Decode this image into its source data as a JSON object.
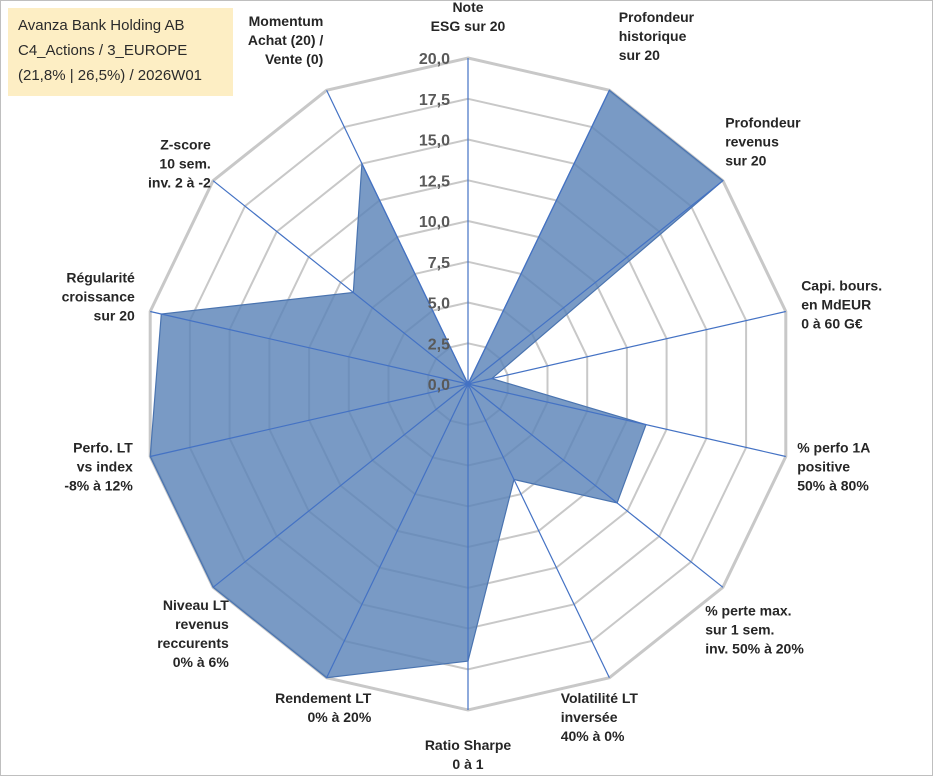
{
  "header": {
    "line1": "Avanza Bank Holding AB",
    "line2": "C4_Actions / 3_EUROPE",
    "line3": "(21,8% | 26,5%) / 2026W01"
  },
  "chart_data": {
    "type": "radar",
    "rmax": 20,
    "ticks": [
      "0,0",
      "2,5",
      "5,0",
      "7,5",
      "10,0",
      "12,5",
      "15,0",
      "17,5",
      "20,0"
    ],
    "axes": [
      {
        "label": [
          "Note",
          "ESG sur 20"
        ],
        "value": 0
      },
      {
        "label": [
          "Profondeur",
          "historique",
          "sur 20"
        ],
        "value": 20
      },
      {
        "label": [
          "Profondeur",
          "revenus",
          "sur 20"
        ],
        "value": 20
      },
      {
        "label": [
          "Capi. bours.",
          "en MdEUR",
          "0 à 60 G€"
        ],
        "value": 1.5
      },
      {
        "label": [
          "% perfo 1A",
          "positive",
          "50% à 80%"
        ],
        "value": 11.2
      },
      {
        "label": [
          "% perte max.",
          "sur 1 sem.",
          "inv. 50% à 20%"
        ],
        "value": 11.7
      },
      {
        "label": [
          "Volatilité LT",
          "inversée",
          "40% à 0%"
        ],
        "value": 6.5
      },
      {
        "label": [
          "Ratio Sharpe",
          "0 à 1"
        ],
        "value": 17
      },
      {
        "label": [
          "Rendement LT",
          "0% à 20%"
        ],
        "value": 20
      },
      {
        "label": [
          "Niveau LT",
          "revenus",
          "reccurents",
          "0% à 6%"
        ],
        "value": 20
      },
      {
        "label": [
          "Perfo. LT",
          "vs index",
          "-8% à 12%"
        ],
        "value": 20
      },
      {
        "label": [
          "Régularité",
          "croissance",
          "sur 20"
        ],
        "value": 19.3
      },
      {
        "label": [
          "Z-score",
          "10 sem.",
          "inv. 2 à -2"
        ],
        "value": 9
      },
      {
        "label": [
          "Momentum",
          "Achat (20) /",
          "Vente (0)"
        ],
        "value": 15
      }
    ],
    "colors": {
      "fill": "#5b84b8",
      "stroke": "#4a74b0",
      "grid": "#c8c8c8",
      "spoke": "#4472c4"
    },
    "grid": true,
    "legend": "none"
  }
}
